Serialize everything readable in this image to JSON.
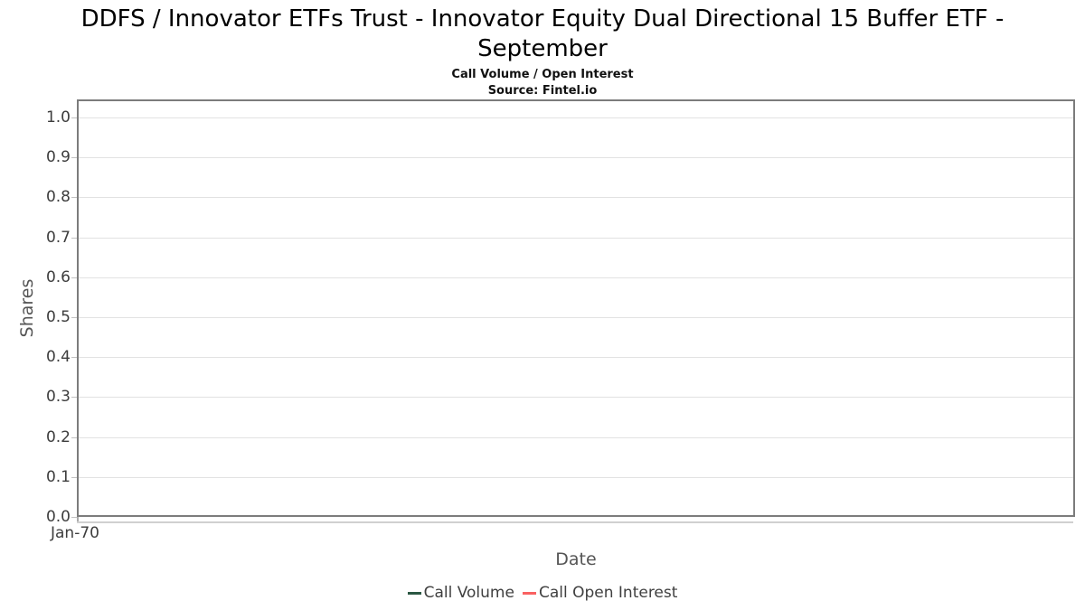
{
  "chart_data": {
    "type": "line",
    "title": "DDFS / Innovator ETFs Trust - Innovator Equity Dual Directional 15 Buffer ETF - September",
    "subtitle": "Call Volume / Open Interest",
    "source": "Source: Fintel.io",
    "xlabel": "Date",
    "ylabel": "Shares",
    "ylim": [
      0.0,
      1.0
    ],
    "grid": true,
    "legend_position": "bottom",
    "yticks": [
      {
        "value": 0.0,
        "label": "0.0"
      },
      {
        "value": 0.1,
        "label": "0.1"
      },
      {
        "value": 0.2,
        "label": "0.2"
      },
      {
        "value": 0.3,
        "label": "0.3"
      },
      {
        "value": 0.4,
        "label": "0.4"
      },
      {
        "value": 0.5,
        "label": "0.5"
      },
      {
        "value": 0.6,
        "label": "0.6"
      },
      {
        "value": 0.7,
        "label": "0.7"
      },
      {
        "value": 0.8,
        "label": "0.8"
      },
      {
        "value": 0.9,
        "label": "0.9"
      },
      {
        "value": 1.0,
        "label": "1.0"
      }
    ],
    "x_tick_labels": [
      "Jan-70"
    ],
    "series": [
      {
        "name": "Call Volume",
        "color": "#2b5743",
        "x": [],
        "values": []
      },
      {
        "name": "Call Open Interest",
        "color": "#f96161",
        "x": [],
        "values": []
      }
    ]
  },
  "colors": {
    "axis_border": "#7c7c7c",
    "gridline": "#e2e2e2",
    "tick_label": "#3d3d3d",
    "axis_label": "#555555",
    "legend_text": "#3f3f3f"
  }
}
